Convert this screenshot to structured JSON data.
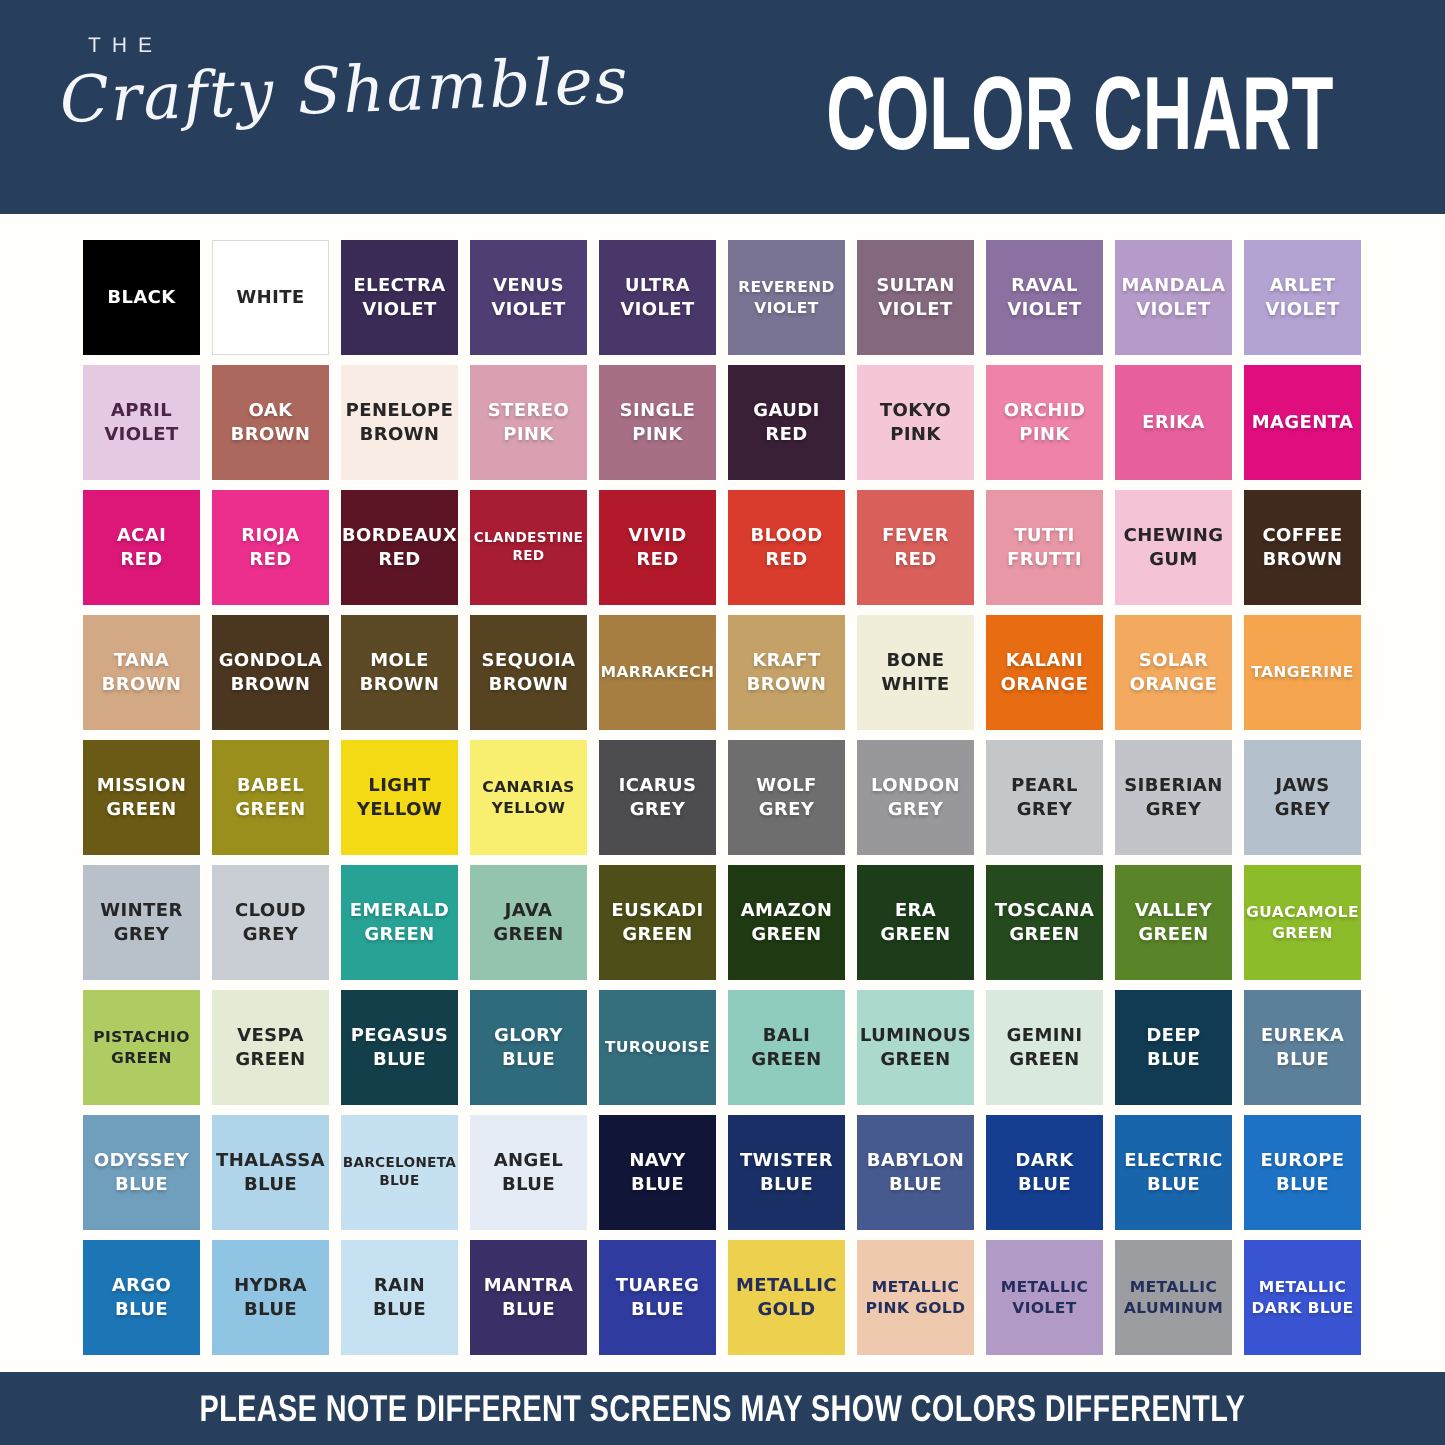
{
  "header": {
    "brand_the": "THE",
    "brand_name": "Crafty Shambles",
    "title": "COLOR CHART",
    "bg_color": "#273e5c",
    "text_color": "#ffffff"
  },
  "footer": {
    "note": "PLEASE NOTE DIFFERENT SCREENS MAY SHOW COLORS DIFFERENTLY"
  },
  "page_bg": "#fffefb",
  "chart_data": {
    "type": "table",
    "title": "COLOR CHART",
    "columns": [
      "color_name",
      "swatch_hex",
      "label_text_hex"
    ],
    "grid": {
      "columns": 10,
      "rows": 9
    },
    "rows": [
      [
        "BLACK",
        "#000000",
        "#ffffff"
      ],
      [
        "WHITE",
        "#ffffff",
        "#262626"
      ],
      [
        "ELECTRA VIOLET",
        "#3a2c57",
        "#ffffff"
      ],
      [
        "VENUS VIOLET",
        "#4e3e73",
        "#ffffff"
      ],
      [
        "ULTRA VIOLET",
        "#4a3769",
        "#ffffff"
      ],
      [
        "REVEREND VIOLET",
        "#7a7494",
        "#ffffff"
      ],
      [
        "SULTAN VIOLET",
        "#84687e",
        "#ffffff"
      ],
      [
        "RAVAL VIOLET",
        "#8b70a2",
        "#ffffff"
      ],
      [
        "MANDALA VIOLET",
        "#b59bc9",
        "#ffffff"
      ],
      [
        "ARLET VIOLET",
        "#b2a3d2",
        "#ffffff"
      ],
      [
        "APRIL VIOLET",
        "#e5c8e2",
        "#4a2545"
      ],
      [
        "OAK BROWN",
        "#ad685d",
        "#ffffff"
      ],
      [
        "PENELOPE BROWN",
        "#f8ece4",
        "#262626"
      ],
      [
        "STEREO PINK",
        "#d9a0b2",
        "#ffffff"
      ],
      [
        "SINGLE PINK",
        "#a76f85",
        "#ffffff"
      ],
      [
        "GAUDI RED",
        "#3a2036",
        "#ffffff"
      ],
      [
        "TOKYO PINK",
        "#f5c6d6",
        "#262626"
      ],
      [
        "ORCHID PINK",
        "#ee82a8",
        "#ffffff"
      ],
      [
        "ERIKA",
        "#e85f9d",
        "#ffffff"
      ],
      [
        "MAGENTA",
        "#df0d7e",
        "#ffffff"
      ],
      [
        "ACAI RED",
        "#dc1778",
        "#ffffff"
      ],
      [
        "RIOJA RED",
        "#ec2f8d",
        "#ffffff"
      ],
      [
        "BORDEAUX RED",
        "#5d1525",
        "#ffffff"
      ],
      [
        "CLANDESTINE RED",
        "#a81d34",
        "#ffffff"
      ],
      [
        "VIVID RED",
        "#b2192b",
        "#ffffff"
      ],
      [
        "BLOOD RED",
        "#d93b2c",
        "#ffffff"
      ],
      [
        "FEVER RED",
        "#d9605a",
        "#ffffff"
      ],
      [
        "TUTTI FRUTTI",
        "#e897a7",
        "#ffffff"
      ],
      [
        "CHEWING GUM",
        "#f4c3d8",
        "#262626"
      ],
      [
        "COFFEE BROWN",
        "#402a1d",
        "#ffffff"
      ],
      [
        "TANA BROWN",
        "#d3a884",
        "#ffffff"
      ],
      [
        "GONDOLA BROWN",
        "#4b3620",
        "#ffffff"
      ],
      [
        "MOLE BROWN",
        "#5c4a26",
        "#ffffff"
      ],
      [
        "SEQUOIA BROWN",
        "#564322",
        "#ffffff"
      ],
      [
        "MARRAKECH",
        "#a67e42",
        "#ffffff"
      ],
      [
        "KRAFT BROWN",
        "#c4a267",
        "#ffffff"
      ],
      [
        "BONE WHITE",
        "#f0edd8",
        "#262626"
      ],
      [
        "KALANI ORANGE",
        "#e76c12",
        "#ffffff"
      ],
      [
        "SOLAR ORANGE",
        "#f3aa5e",
        "#ffffff"
      ],
      [
        "TANGERINE",
        "#f5a54e",
        "#ffffff"
      ],
      [
        "MISSION GREEN",
        "#6a5a15",
        "#ffffff"
      ],
      [
        "BABEL GREEN",
        "#9a8f1c",
        "#ffffff"
      ],
      [
        "LIGHT YELLOW",
        "#f4da15",
        "#262626"
      ],
      [
        "CANARIAS YELLOW",
        "#f8ef70",
        "#262626"
      ],
      [
        "ICARUS GREY",
        "#4d4d4f",
        "#ffffff"
      ],
      [
        "WOLF GREY",
        "#6e6e6e",
        "#ffffff"
      ],
      [
        "LONDON GREY",
        "#98989a",
        "#ffffff"
      ],
      [
        "PEARL GREY",
        "#c4c7c9",
        "#262626"
      ],
      [
        "SIBERIAN GREY",
        "#c1c5c9",
        "#262626"
      ],
      [
        "JAWS GREY",
        "#b5c0cd",
        "#262626"
      ],
      [
        "WINTER GREY",
        "#b8c0ca",
        "#262626"
      ],
      [
        "CLOUD GREY",
        "#c8ced4",
        "#262626"
      ],
      [
        "EMERALD GREEN",
        "#27a396",
        "#ffffff"
      ],
      [
        "JAVA GREEN",
        "#94c4ae",
        "#262626"
      ],
      [
        "EUSKADI GREEN",
        "#4e4e18",
        "#ffffff"
      ],
      [
        "AMAZON GREEN",
        "#1f3a12",
        "#ffffff"
      ],
      [
        "ERA GREEN",
        "#1d3d1a",
        "#ffffff"
      ],
      [
        "TOSCANA GREEN",
        "#254a1e",
        "#ffffff"
      ],
      [
        "VALLEY GREEN",
        "#598427",
        "#ffffff"
      ],
      [
        "GUACAMOLE GREEN",
        "#8dbc2b",
        "#ffffff"
      ],
      [
        "PISTACHIO GREEN",
        "#afcc63",
        "#262626"
      ],
      [
        "VESPA GREEN",
        "#e3ebd4",
        "#262626"
      ],
      [
        "PEGASUS BLUE",
        "#133f4a",
        "#ffffff"
      ],
      [
        "GLORY BLUE",
        "#2f6a7d",
        "#ffffff"
      ],
      [
        "TURQUOISE",
        "#356f7e",
        "#ffffff"
      ],
      [
        "BALI GREEN",
        "#8fccbd",
        "#262626"
      ],
      [
        "LUMINOUS GREEN",
        "#acd9cd",
        "#262626"
      ],
      [
        "GEMINI GREEN",
        "#d9e9de",
        "#262626"
      ],
      [
        "DEEP BLUE",
        "#113b53",
        "#ffffff"
      ],
      [
        "EUREKA BLUE",
        "#5d809a",
        "#ffffff"
      ],
      [
        "ODYSSEY BLUE",
        "#709ebd",
        "#ffffff"
      ],
      [
        "THALASSA BLUE",
        "#b0d5ea",
        "#262626"
      ],
      [
        "BARCELONETA BLUE",
        "#c5e0f0",
        "#262626"
      ],
      [
        "ANGEL BLUE",
        "#e5ecf5",
        "#262626"
      ],
      [
        "NAVY BLUE",
        "#111538",
        "#ffffff"
      ],
      [
        "TWISTER BLUE",
        "#1a2f66",
        "#ffffff"
      ],
      [
        "BABYLON BLUE",
        "#475a90",
        "#ffffff"
      ],
      [
        "DARK BLUE",
        "#153e90",
        "#ffffff"
      ],
      [
        "ELECTRIC BLUE",
        "#1965ac",
        "#ffffff"
      ],
      [
        "EUROPE BLUE",
        "#1e72c5",
        "#ffffff"
      ],
      [
        "ARGO BLUE",
        "#1c75b5",
        "#ffffff"
      ],
      [
        "HYDRA BLUE",
        "#90c4e3",
        "#262626"
      ],
      [
        "RAIN BLUE",
        "#c5e1f2",
        "#262626"
      ],
      [
        "MANTRA BLUE",
        "#3a2f66",
        "#ffffff"
      ],
      [
        "TUAREG BLUE",
        "#2f3b9e",
        "#ffffff"
      ],
      [
        "METALLIC GOLD",
        "#ecd04e",
        "#232e5c"
      ],
      [
        "METALLIC PINK GOLD",
        "#eec9ae",
        "#232e5c"
      ],
      [
        "METALLIC VIOLET",
        "#b29ac6",
        "#232e5c"
      ],
      [
        "METALLIC ALUMINUM",
        "#9c9da0",
        "#232e5c"
      ],
      [
        "METALLIC DARK BLUE",
        "#3854d2",
        "#ffffff"
      ]
    ]
  }
}
